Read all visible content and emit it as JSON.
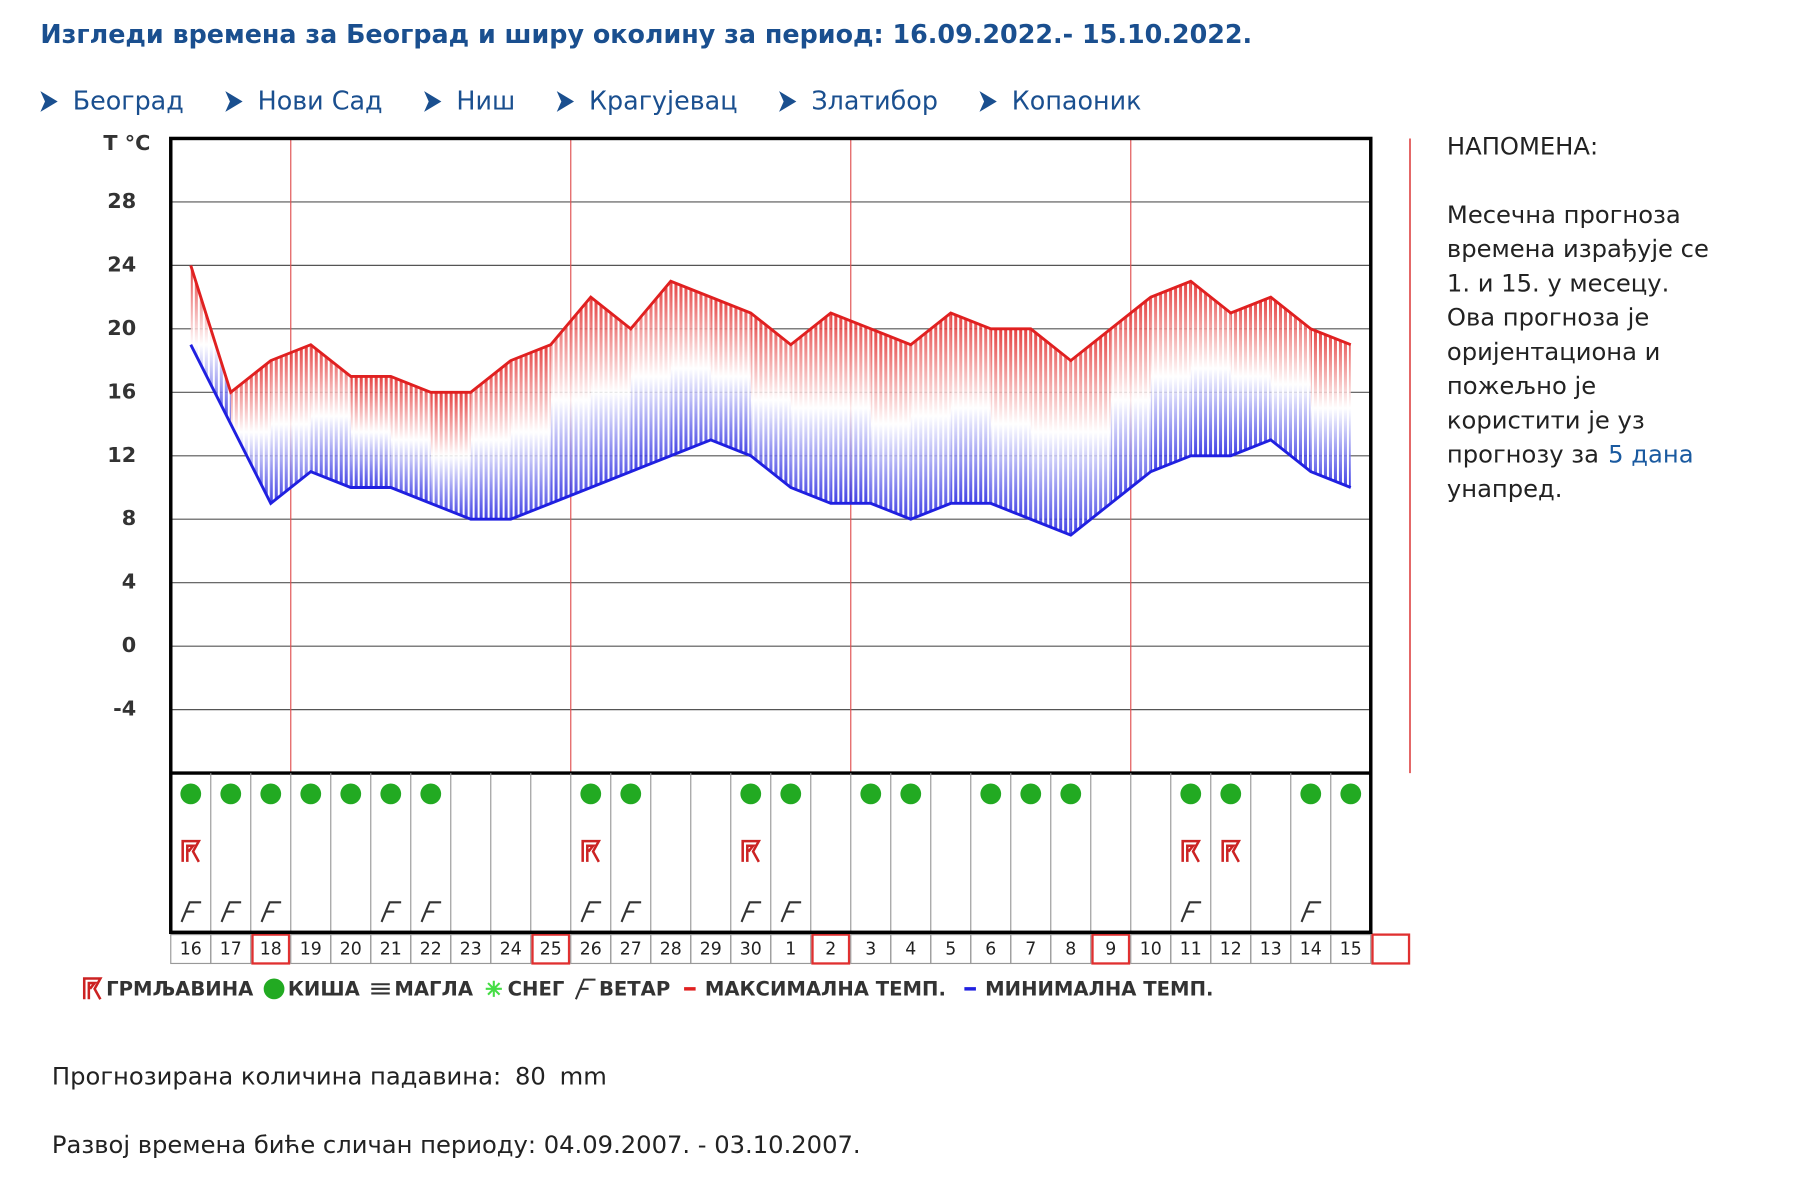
{
  "header": {
    "title": "Изгледи времена за Београд и ширу околину за период: 16.09.2022.- 15.10.2022."
  },
  "nav": {
    "links": [
      "Београд",
      "Нови Сад",
      "Ниш",
      "Крагујевац",
      "Златибор",
      "Копаоник"
    ]
  },
  "chart_data": {
    "type": "line",
    "y_label": "T °C",
    "categories": [
      "16",
      "17",
      "18",
      "19",
      "20",
      "21",
      "22",
      "23",
      "24",
      "25",
      "26",
      "27",
      "28",
      "29",
      "30",
      "1",
      "2",
      "3",
      "4",
      "5",
      "6",
      "7",
      "8",
      "9",
      "10",
      "11",
      "12",
      "13",
      "14",
      "15"
    ],
    "series": [
      {
        "name": "МАКСИМАЛНА ТЕМП.",
        "color": "#e02020",
        "values": [
          24,
          16,
          18,
          19,
          17,
          17,
          16,
          16,
          18,
          19,
          22,
          20,
          23,
          22,
          21,
          19,
          21,
          20,
          19,
          21,
          20,
          20,
          18,
          20,
          22,
          23,
          21,
          22,
          20,
          19
        ]
      },
      {
        "name": "МИНИМАЛНА ТЕМП.",
        "color": "#2020e0",
        "values": [
          19,
          14,
          9,
          11,
          10,
          10,
          9,
          8,
          8,
          9,
          10,
          11,
          12,
          13,
          12,
          10,
          9,
          9,
          8,
          9,
          9,
          8,
          7,
          9,
          11,
          12,
          12,
          13,
          11,
          10
        ]
      }
    ],
    "ylim": [
      -8,
      32
    ],
    "yticks": [
      -4,
      0,
      4,
      8,
      12,
      16,
      20,
      24,
      28
    ],
    "grid": true,
    "conditions": [
      {
        "name": "ГРМЉАВИНА",
        "color": "#cc2222",
        "values": [
          1,
          0,
          0,
          0,
          0,
          0,
          0,
          0,
          0,
          0,
          1,
          0,
          0,
          0,
          1,
          0,
          0,
          0,
          0,
          0,
          0,
          0,
          0,
          0,
          0,
          1,
          1,
          0,
          0,
          0
        ]
      },
      {
        "name": "КИША",
        "color": "#22aa22",
        "values": [
          1,
          1,
          1,
          1,
          1,
          1,
          1,
          0,
          0,
          0,
          1,
          1,
          0,
          0,
          1,
          1,
          0,
          1,
          1,
          0,
          1,
          1,
          1,
          0,
          0,
          1,
          1,
          0,
          1,
          1
        ]
      },
      {
        "name": "МАГЛА",
        "color": "#333333",
        "values": [
          0,
          0,
          0,
          0,
          0,
          0,
          0,
          0,
          0,
          0,
          0,
          0,
          0,
          0,
          0,
          0,
          0,
          0,
          0,
          0,
          0,
          0,
          0,
          0,
          0,
          0,
          0,
          0,
          0,
          0
        ]
      },
      {
        "name": "СНЕГ",
        "color": "#44dd44",
        "values": [
          0,
          0,
          0,
          0,
          0,
          0,
          0,
          0,
          0,
          0,
          0,
          0,
          0,
          0,
          0,
          0,
          0,
          0,
          0,
          0,
          0,
          0,
          0,
          0,
          0,
          0,
          0,
          0,
          0,
          0
        ]
      },
      {
        "name": "ВЕТАР",
        "color": "#333333",
        "values": [
          1,
          1,
          1,
          0,
          0,
          1,
          1,
          0,
          0,
          0,
          1,
          1,
          0,
          0,
          1,
          1,
          0,
          0,
          0,
          0,
          0,
          0,
          0,
          0,
          0,
          1,
          0,
          0,
          1,
          0
        ]
      }
    ]
  },
  "note": {
    "heading": "НАПОМЕНА:",
    "lines": [
      "Месечна прогноза",
      "времена израђује се",
      "1. и 15. у месецу.",
      "Ова прогноза је",
      "оријентациона и",
      "пожељно је",
      "користити је уз",
      "прогнозу за",
      "унапред."
    ],
    "link": "5 дана"
  },
  "precipitation": {
    "label": "Прогнозирана количина падавина:",
    "value": 80,
    "unit": "mm"
  },
  "analog": {
    "text": "Развој времена биће сличан периоду: 04.09.2007. - 03.10.2007."
  }
}
